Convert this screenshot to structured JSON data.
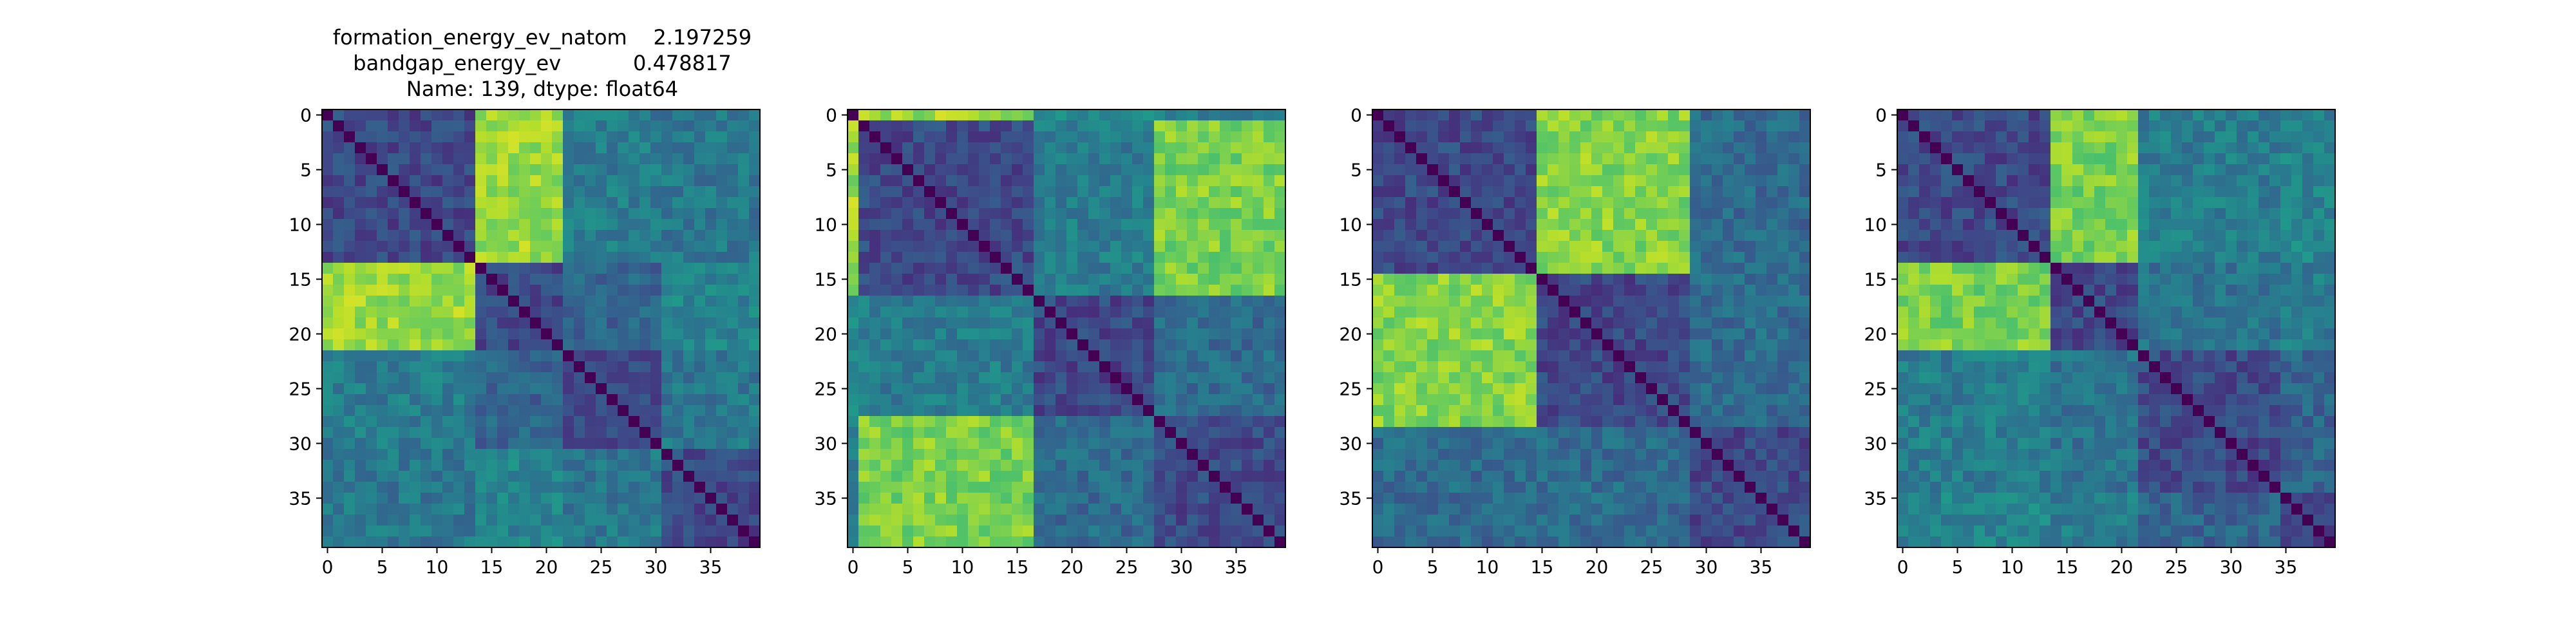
{
  "figure": {
    "title_lines": [
      "formation_energy_ev_natom    2.197259",
      "bandgap_energy_ev           0.478817",
      "Name: 139, dtype: float64"
    ]
  },
  "chart_data": [
    {
      "type": "heatmap",
      "title": "formation_energy_ev_natom    2.197259\nbandgap_energy_ev           0.478817\nName: 139, dtype: float64",
      "shape": [
        40,
        40
      ],
      "colormap": "viridis",
      "xticks": [
        0,
        5,
        10,
        15,
        20,
        25,
        30,
        35
      ],
      "yticks": [
        0,
        5,
        10,
        15,
        20,
        25,
        30,
        35
      ],
      "diagonal": 0,
      "groups": [
        [
          0,
          13
        ],
        [
          14,
          21
        ],
        [
          22,
          30
        ],
        [
          31,
          39
        ]
      ],
      "block_levels": [
        [
          0.22,
          0.85,
          0.42,
          0.4
        ],
        [
          0.85,
          0.22,
          0.32,
          0.45
        ],
        [
          0.42,
          0.32,
          0.22,
          0.4
        ],
        [
          0.4,
          0.45,
          0.4,
          0.22
        ]
      ]
    },
    {
      "type": "heatmap",
      "title": "",
      "shape": [
        40,
        40
      ],
      "colormap": "viridis",
      "xticks": [
        0,
        5,
        10,
        15,
        20,
        25,
        30,
        35
      ],
      "yticks": [
        0,
        5,
        10,
        15,
        20,
        25,
        30,
        35
      ],
      "diagonal": 0,
      "groups": [
        [
          0,
          0
        ],
        [
          1,
          16
        ],
        [
          17,
          27
        ],
        [
          28,
          39
        ]
      ],
      "block_levels": [
        [
          0.22,
          0.85,
          0.45,
          0.4
        ],
        [
          0.85,
          0.22,
          0.42,
          0.8
        ],
        [
          0.45,
          0.42,
          0.22,
          0.35
        ],
        [
          0.4,
          0.8,
          0.35,
          0.22
        ]
      ]
    },
    {
      "type": "heatmap",
      "title": "",
      "shape": [
        40,
        40
      ],
      "colormap": "viridis",
      "xticks": [
        0,
        5,
        10,
        15,
        20,
        25,
        30,
        35
      ],
      "yticks": [
        0,
        5,
        10,
        15,
        20,
        25,
        30,
        35
      ],
      "diagonal": 0,
      "groups": [
        [
          0,
          14
        ],
        [
          15,
          28
        ],
        [
          29,
          39
        ]
      ],
      "block_levels": [
        [
          0.22,
          0.82,
          0.35
        ],
        [
          0.82,
          0.22,
          0.35
        ],
        [
          0.35,
          0.35,
          0.22
        ]
      ]
    },
    {
      "type": "heatmap",
      "title": "",
      "shape": [
        40,
        40
      ],
      "colormap": "viridis",
      "xticks": [
        0,
        5,
        10,
        15,
        20,
        25,
        30,
        35
      ],
      "yticks": [
        0,
        5,
        10,
        15,
        20,
        25,
        30,
        35
      ],
      "diagonal": 0,
      "groups": [
        [
          0,
          13
        ],
        [
          14,
          21
        ],
        [
          22,
          34
        ],
        [
          35,
          39
        ]
      ],
      "block_levels": [
        [
          0.22,
          0.8,
          0.42,
          0.45
        ],
        [
          0.8,
          0.22,
          0.38,
          0.42
        ],
        [
          0.42,
          0.38,
          0.22,
          0.32
        ],
        [
          0.45,
          0.42,
          0.32,
          0.22
        ]
      ]
    }
  ]
}
